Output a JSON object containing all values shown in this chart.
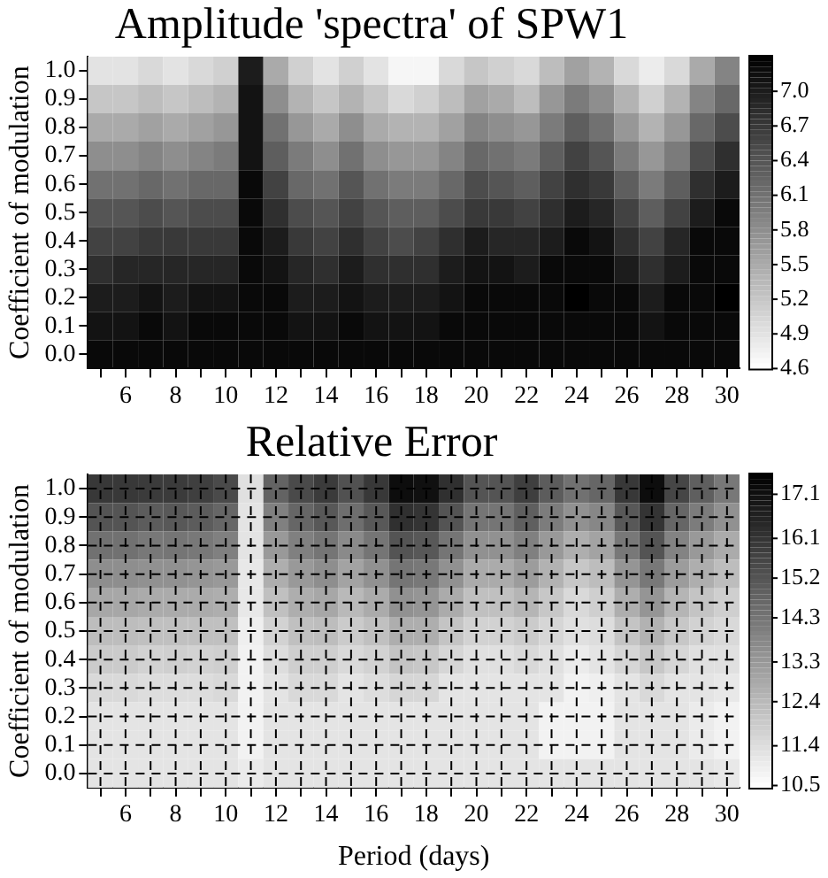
{
  "chart_data": [
    {
      "type": "heatmap",
      "title": "Amplitude 'spectra' of SPW1",
      "ylabel": "Coefficient of modulation",
      "categories": [
        null,
        "6",
        null,
        "8",
        null,
        "10",
        null,
        "12",
        null,
        "14",
        null,
        "16",
        null,
        "18",
        null,
        "20",
        null,
        "22",
        null,
        "24",
        null,
        "26",
        null,
        "28",
        null,
        "30"
      ],
      "y_categories": [
        "1.0",
        "0.9",
        "0.8",
        "0.7",
        "0.6",
        "0.5",
        "0.4",
        "0.3",
        "0.2",
        "0.1",
        "0.0"
      ],
      "cells": [
        [
          4.9,
          4.9,
          5.0,
          4.9,
          5.0,
          5.1,
          7.0,
          5.5,
          5.1,
          4.9,
          5.1,
          4.9,
          4.7,
          4.7,
          5.0,
          5.2,
          5.1,
          5.0,
          5.3,
          5.6,
          5.4,
          5.0,
          4.8,
          5.0,
          5.5,
          5.9
        ],
        [
          5.2,
          5.2,
          5.3,
          5.2,
          5.3,
          5.4,
          7.1,
          5.8,
          5.4,
          5.2,
          5.4,
          5.2,
          5.0,
          5.1,
          5.3,
          5.6,
          5.5,
          5.3,
          5.7,
          6.0,
          5.8,
          5.4,
          5.1,
          5.4,
          5.9,
          6.2
        ],
        [
          5.5,
          5.5,
          5.6,
          5.5,
          5.6,
          5.7,
          7.1,
          6.1,
          5.7,
          5.5,
          5.8,
          5.5,
          5.4,
          5.4,
          5.6,
          5.9,
          5.8,
          5.7,
          6.0,
          6.3,
          6.1,
          5.7,
          5.4,
          5.7,
          6.2,
          6.5
        ],
        [
          5.8,
          5.8,
          5.9,
          5.8,
          5.9,
          6.0,
          7.1,
          6.3,
          6.0,
          5.8,
          6.1,
          5.8,
          5.7,
          5.7,
          5.9,
          6.2,
          6.1,
          6.0,
          6.3,
          6.6,
          6.4,
          6.0,
          5.7,
          6.0,
          6.5,
          6.8
        ],
        [
          6.1,
          6.1,
          6.2,
          6.1,
          6.2,
          6.2,
          7.2,
          6.6,
          6.2,
          6.1,
          6.4,
          6.1,
          6.0,
          6.0,
          6.2,
          6.5,
          6.4,
          6.3,
          6.6,
          6.8,
          6.7,
          6.3,
          6.0,
          6.3,
          6.8,
          7.0
        ],
        [
          6.4,
          6.4,
          6.5,
          6.4,
          6.5,
          6.5,
          7.2,
          6.8,
          6.5,
          6.4,
          6.6,
          6.4,
          6.3,
          6.3,
          6.5,
          6.7,
          6.7,
          6.6,
          6.8,
          7.0,
          6.9,
          6.6,
          6.3,
          6.6,
          7.0,
          7.2
        ],
        [
          6.6,
          6.6,
          6.7,
          6.7,
          6.7,
          6.7,
          7.2,
          7.0,
          6.7,
          6.6,
          6.8,
          6.6,
          6.5,
          6.6,
          6.8,
          7.0,
          6.9,
          6.9,
          7.0,
          7.2,
          7.1,
          6.8,
          6.6,
          6.9,
          7.2,
          7.2
        ],
        [
          6.8,
          6.9,
          6.9,
          6.9,
          6.9,
          6.9,
          7.2,
          7.1,
          6.9,
          6.8,
          7.0,
          6.8,
          6.8,
          6.8,
          7.0,
          7.1,
          7.1,
          7.0,
          7.2,
          7.2,
          7.2,
          7.0,
          6.8,
          7.0,
          7.2,
          7.2
        ],
        [
          7.0,
          7.0,
          7.1,
          7.0,
          7.1,
          7.1,
          7.2,
          7.2,
          7.0,
          7.0,
          7.1,
          7.0,
          7.0,
          7.0,
          7.1,
          7.2,
          7.2,
          7.2,
          7.2,
          7.3,
          7.2,
          7.2,
          7.0,
          7.2,
          7.2,
          7.3
        ],
        [
          7.1,
          7.1,
          7.2,
          7.1,
          7.2,
          7.2,
          7.2,
          7.2,
          7.1,
          7.1,
          7.2,
          7.1,
          7.1,
          7.1,
          7.2,
          7.2,
          7.2,
          7.2,
          7.2,
          7.2,
          7.2,
          7.2,
          7.1,
          7.2,
          7.2,
          7.2
        ],
        [
          7.2,
          7.2,
          7.2,
          7.2,
          7.2,
          7.2,
          7.2,
          7.2,
          7.2,
          7.2,
          7.2,
          7.2,
          7.2,
          7.2,
          7.2,
          7.2,
          7.2,
          7.2,
          7.2,
          7.2,
          7.2,
          7.2,
          7.2,
          7.2,
          7.2,
          7.2
        ]
      ],
      "clim": [
        4.6,
        7.3
      ],
      "cticks": [
        4.6,
        4.9,
        5.2,
        5.5,
        5.8,
        6.1,
        6.4,
        6.7,
        {
          "value": 7,
          "label": "7.0"
        }
      ]
    },
    {
      "type": "heatmap",
      "title": "Relative Error",
      "xlabel": "Period (days)",
      "ylabel": "Coefficient of modulation",
      "categories": [
        null,
        "6",
        null,
        "8",
        null,
        "10",
        null,
        "12",
        null,
        "14",
        null,
        "16",
        null,
        "18",
        null,
        "20",
        null,
        "22",
        null,
        "24",
        null,
        "26",
        null,
        "28",
        null,
        "30"
      ],
      "y_categories": [
        "1.0",
        "0.9",
        "0.8",
        "0.7",
        "0.6",
        "0.5",
        "0.4",
        "0.3",
        "0.2",
        "0.1",
        "0.0"
      ],
      "cells": [
        [
          16.0,
          16.0,
          15.9,
          15.9,
          15.8,
          15.5,
          11.3,
          14.8,
          15.5,
          15.9,
          15.3,
          16.0,
          17.2,
          17.1,
          16.2,
          15.2,
          15.2,
          15.8,
          15.0,
          14.4,
          14.7,
          16.0,
          17.2,
          15.6,
          14.9,
          14.2
        ],
        [
          15.2,
          15.2,
          15.0,
          15.1,
          15.0,
          14.7,
          11.2,
          14.0,
          14.7,
          15.1,
          14.5,
          15.1,
          16.2,
          16.1,
          15.2,
          14.3,
          14.3,
          14.9,
          14.1,
          13.5,
          13.8,
          15.1,
          16.1,
          14.7,
          14.1,
          13.5
        ],
        [
          14.4,
          14.4,
          14.2,
          14.3,
          14.2,
          14.0,
          11.2,
          13.3,
          14.0,
          14.3,
          13.7,
          14.3,
          15.2,
          15.1,
          14.3,
          13.5,
          13.5,
          14.0,
          13.3,
          12.7,
          13.0,
          14.2,
          15.2,
          13.9,
          13.3,
          12.8
        ],
        [
          13.6,
          13.6,
          13.5,
          13.5,
          13.4,
          13.3,
          11.1,
          12.7,
          13.3,
          13.6,
          13.0,
          13.5,
          14.3,
          14.2,
          13.5,
          12.8,
          12.8,
          13.2,
          12.6,
          12.0,
          12.3,
          13.4,
          14.2,
          13.2,
          12.7,
          12.3
        ],
        [
          12.9,
          12.9,
          12.8,
          12.8,
          12.8,
          12.7,
          11.1,
          12.2,
          12.7,
          12.9,
          12.4,
          12.8,
          13.5,
          13.4,
          12.8,
          12.2,
          12.2,
          12.5,
          12.0,
          11.5,
          11.8,
          12.7,
          13.4,
          12.5,
          12.1,
          11.8
        ],
        [
          12.3,
          12.3,
          12.2,
          12.2,
          12.2,
          12.2,
          10.9,
          11.7,
          12.2,
          12.3,
          11.9,
          12.2,
          12.7,
          12.7,
          12.1,
          11.7,
          11.7,
          11.9,
          11.6,
          11.3,
          11.4,
          12.1,
          12.6,
          12.0,
          11.7,
          11.5
        ],
        [
          11.9,
          11.9,
          11.7,
          11.8,
          11.7,
          11.8,
          10.8,
          11.4,
          11.8,
          11.8,
          11.5,
          11.7,
          12.1,
          12.0,
          11.6,
          11.3,
          11.3,
          11.5,
          11.3,
          11.0,
          11.2,
          11.6,
          12.0,
          11.6,
          11.3,
          11.3
        ],
        [
          11.5,
          11.5,
          11.4,
          11.4,
          11.4,
          11.5,
          10.8,
          11.2,
          11.5,
          11.5,
          11.2,
          11.4,
          11.6,
          11.6,
          11.2,
          11.2,
          11.2,
          11.2,
          11.2,
          10.8,
          10.9,
          11.2,
          11.5,
          11.2,
          11.2,
          11.1
        ],
        [
          11.2,
          11.2,
          11.2,
          11.2,
          11.2,
          11.2,
          10.8,
          11.2,
          11.2,
          11.2,
          11.2,
          11.2,
          11.2,
          11.2,
          11.2,
          11.2,
          11.2,
          11.2,
          10.8,
          10.8,
          10.8,
          11.2,
          11.2,
          11.2,
          11.0,
          10.8
        ],
        [
          11.2,
          11.2,
          11.2,
          11.2,
          11.2,
          11.2,
          10.8,
          11.2,
          11.2,
          11.2,
          11.2,
          11.2,
          11.2,
          11.2,
          11.2,
          11.2,
          11.2,
          11.2,
          10.8,
          10.8,
          10.8,
          11.2,
          11.2,
          11.2,
          11.0,
          10.8
        ],
        [
          11.2,
          11.2,
          11.2,
          11.2,
          11.2,
          11.2,
          11.0,
          11.2,
          11.2,
          11.2,
          11.2,
          11.2,
          11.2,
          11.2,
          11.2,
          11.2,
          11.2,
          11.2,
          11.2,
          11.2,
          11.2,
          11.2,
          11.2,
          11.2,
          11.2,
          11.1
        ]
      ],
      "clim": [
        10.45,
        17.55
      ],
      "cticks": [
        10.5,
        11.4,
        12.4,
        13.3,
        14.3,
        15.2,
        16.1,
        17.1
      ],
      "grid": true
    }
  ]
}
